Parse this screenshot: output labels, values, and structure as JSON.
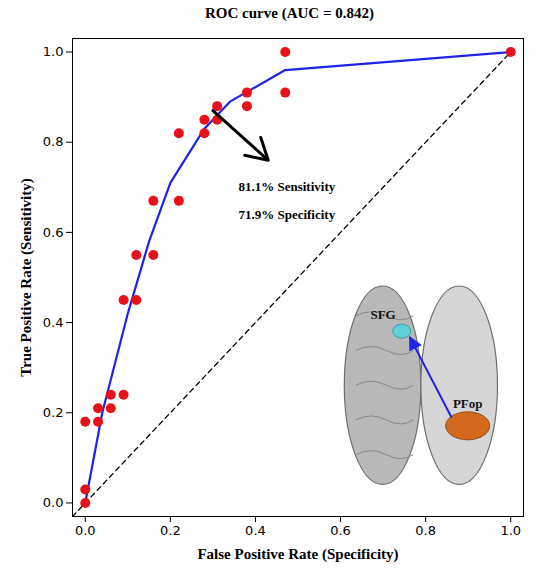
{
  "chart_data": {
    "type": "scatter",
    "title": "ROC curve (AUC = 0.842)",
    "x_label": "False Positive Rate (Specificity)",
    "y_label": "True Positive Rate (Sensitivity)",
    "xlim": [
      -0.03,
      1.03
    ],
    "ylim": [
      -0.03,
      1.03
    ],
    "xticks": [
      {
        "value": 0,
        "label": "0.0"
      },
      0.2,
      0.4,
      0.6,
      0.8,
      {
        "value": 1,
        "label": "1.0"
      }
    ],
    "yticks": [
      {
        "value": 0,
        "label": "0.0"
      },
      0.2,
      0.4,
      0.6,
      0.8,
      {
        "value": 1,
        "label": "1.0"
      }
    ],
    "grid": false,
    "series": [
      {
        "type": "line",
        "color": "#000000",
        "line_style": "dashed",
        "x": [
          -0.03,
          1.0
        ],
        "values": [
          -0.03,
          1.0
        ]
      },
      {
        "type": "line",
        "color": "#1f22e8",
        "line_style": "solid",
        "x": [
          0.0,
          0.04,
          0.1,
          0.15,
          0.2,
          0.28,
          0.34,
          0.47,
          1.0
        ],
        "values": [
          0.0,
          0.2,
          0.42,
          0.58,
          0.71,
          0.83,
          0.89,
          0.96,
          1.0
        ]
      },
      {
        "type": "scatter",
        "color": "#e8111a",
        "marker": "circle",
        "x": [
          0.0,
          0.0,
          0.0,
          0.03,
          0.03,
          0.06,
          0.06,
          0.09,
          0.09,
          0.12,
          0.12,
          0.16,
          0.16,
          0.22,
          0.22,
          0.28,
          0.28,
          0.31,
          0.31,
          0.38,
          0.38,
          0.47,
          0.47,
          1.0
        ],
        "values": [
          0.0,
          0.03,
          0.18,
          0.18,
          0.21,
          0.21,
          0.24,
          0.24,
          0.45,
          0.45,
          0.55,
          0.55,
          0.67,
          0.67,
          0.82,
          0.82,
          0.85,
          0.85,
          0.88,
          0.88,
          0.91,
          0.91,
          1.0,
          1.0
        ]
      }
    ],
    "annotation": {
      "text": [
        "81.1% Sensitivity",
        "71.9% Specificity"
      ],
      "x": 0.3,
      "y": 0.87
    },
    "inset_labels": [
      "SFG",
      "PFop"
    ]
  }
}
